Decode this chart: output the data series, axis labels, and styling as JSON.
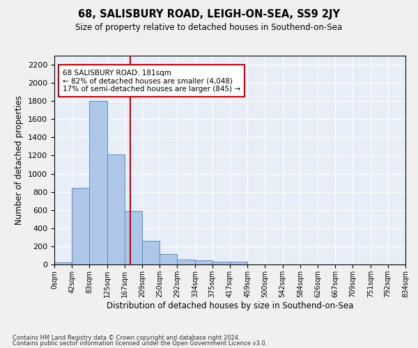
{
  "title": "68, SALISBURY ROAD, LEIGH-ON-SEA, SS9 2JY",
  "subtitle": "Size of property relative to detached houses in Southend-on-Sea",
  "xlabel": "Distribution of detached houses by size in Southend-on-Sea",
  "ylabel": "Number of detached properties",
  "bar_edges": [
    0,
    42,
    83,
    125,
    167,
    209,
    250,
    292,
    334,
    375,
    417,
    459,
    500,
    542,
    584,
    626,
    667,
    709,
    751,
    792,
    834
  ],
  "bar_heights": [
    25,
    840,
    1800,
    1210,
    590,
    260,
    115,
    50,
    45,
    30,
    30,
    0,
    0,
    0,
    0,
    0,
    0,
    0,
    0,
    0
  ],
  "bar_color": "#aec6e8",
  "bar_edge_color": "#5a8fc2",
  "property_size": 181,
  "vline_color": "#cc0000",
  "annotation_text": "68 SALISBURY ROAD: 181sqm\n← 82% of detached houses are smaller (4,048)\n17% of semi-detached houses are larger (845) →",
  "annotation_box_color": "#ffffff",
  "annotation_box_edge": "#cc0000",
  "ylim": [
    0,
    2300
  ],
  "yticks": [
    0,
    200,
    400,
    600,
    800,
    1000,
    1200,
    1400,
    1600,
    1800,
    2000,
    2200
  ],
  "bg_color": "#e8eef7",
  "grid_color": "#ffffff",
  "fig_bg_color": "#f0f0f0",
  "footer_line1": "Contains HM Land Registry data © Crown copyright and database right 2024.",
  "footer_line2": "Contains public sector information licensed under the Open Government Licence v3.0."
}
